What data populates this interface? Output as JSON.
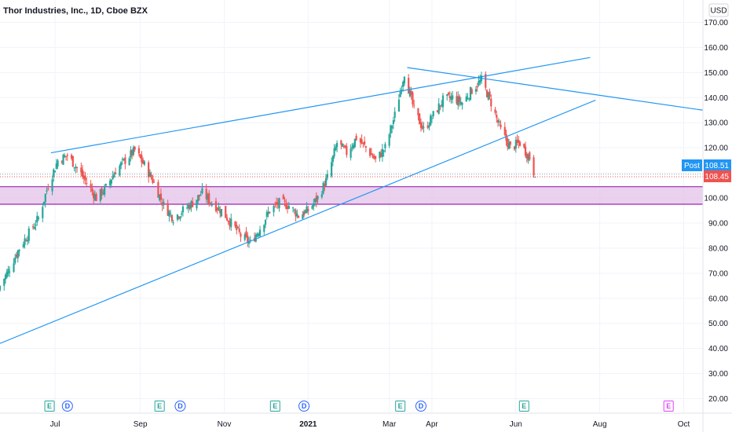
{
  "header": {
    "symbol_title": "Thor Industries, Inc., 1D, Cboe BZX",
    "currency": "USD"
  },
  "price_tags": {
    "post_label": "Post",
    "post_value": "108.51",
    "last_value": "108.45"
  },
  "colors": {
    "up": "#26a69a",
    "down": "#ef5350",
    "trendline": "#2196f3",
    "zone_fill": "#e1bee7",
    "zone_border": "#9c27b0",
    "post_tag": "#2196f3",
    "last_tag": "#ef5350",
    "earnings": "#26a69a",
    "dividend": "#2962ff",
    "future_earnings": "#e040fb"
  },
  "chart_data": {
    "type": "candlestick",
    "title": "Thor Industries, Inc., 1D, Cboe BZX",
    "ylim": [
      15,
      175
    ],
    "y_ticks": [
      "20.00",
      "30.00",
      "40.00",
      "50.00",
      "60.00",
      "70.00",
      "80.00",
      "90.00",
      "100.00",
      "110.00",
      "120.00",
      "130.00",
      "140.00",
      "150.00",
      "160.00",
      "170.00"
    ],
    "x_ticks": [
      "Jul",
      "Sep",
      "Nov",
      "2021",
      "Mar",
      "Apr",
      "Jun",
      "Aug",
      "Oct"
    ],
    "x_tick_dates": [
      "2020-07-01",
      "2020-09-01",
      "2020-11-01",
      "2021-01-01",
      "2021-03-01",
      "2021-04-01",
      "2021-06-01",
      "2021-08-01",
      "2021-10-01"
    ],
    "xlim": [
      "2020-05-22",
      "2021-10-15"
    ],
    "closes": [
      [
        "2020-05-22",
        65
      ],
      [
        "2020-05-29",
        72
      ],
      [
        "2020-06-05",
        80
      ],
      [
        "2020-06-12",
        86
      ],
      [
        "2020-06-19",
        92
      ],
      [
        "2020-06-26",
        105
      ],
      [
        "2020-07-03",
        115
      ],
      [
        "2020-07-10",
        117
      ],
      [
        "2020-07-17",
        112
      ],
      [
        "2020-07-24",
        106
      ],
      [
        "2020-07-31",
        100
      ],
      [
        "2020-08-07",
        104
      ],
      [
        "2020-08-14",
        111
      ],
      [
        "2020-08-21",
        115
      ],
      [
        "2020-08-28",
        119
      ],
      [
        "2020-09-04",
        113
      ],
      [
        "2020-09-11",
        106
      ],
      [
        "2020-09-18",
        97
      ],
      [
        "2020-09-25",
        92
      ],
      [
        "2020-10-02",
        95
      ],
      [
        "2020-10-09",
        98
      ],
      [
        "2020-10-16",
        102
      ],
      [
        "2020-10-23",
        98
      ],
      [
        "2020-10-30",
        95
      ],
      [
        "2020-11-06",
        90
      ],
      [
        "2020-11-13",
        85
      ],
      [
        "2020-11-20",
        82
      ],
      [
        "2020-11-27",
        88
      ],
      [
        "2020-12-04",
        95
      ],
      [
        "2020-12-11",
        98
      ],
      [
        "2020-12-18",
        97
      ],
      [
        "2020-12-25",
        93
      ],
      [
        "2021-01-01",
        95
      ],
      [
        "2021-01-08",
        100
      ],
      [
        "2021-01-15",
        108
      ],
      [
        "2021-01-22",
        122
      ],
      [
        "2021-01-29",
        118
      ],
      [
        "2021-02-05",
        124
      ],
      [
        "2021-02-12",
        120
      ],
      [
        "2021-02-19",
        115
      ],
      [
        "2021-02-26",
        120
      ],
      [
        "2021-03-05",
        133
      ],
      [
        "2021-03-12",
        150
      ],
      [
        "2021-03-19",
        135
      ],
      [
        "2021-03-26",
        127
      ],
      [
        "2021-04-02",
        133
      ],
      [
        "2021-04-09",
        139
      ],
      [
        "2021-04-16",
        140
      ],
      [
        "2021-04-23",
        138
      ],
      [
        "2021-04-30",
        143
      ],
      [
        "2021-05-07",
        147
      ],
      [
        "2021-05-14",
        138
      ],
      [
        "2021-05-21",
        127
      ],
      [
        "2021-05-28",
        120
      ],
      [
        "2021-06-04",
        122
      ],
      [
        "2021-06-11",
        116
      ],
      [
        "2021-06-15",
        108.45
      ]
    ],
    "support_zone": [
      97.5,
      104.5
    ],
    "trendlines": [
      {
        "from": [
          "2020-06-28",
          118
        ],
        "to": [
          "2021-07-25",
          156
        ]
      },
      {
        "from": [
          "2021-03-14",
          152
        ],
        "to": [
          "2021-10-15",
          135
        ]
      },
      {
        "from": [
          "2020-05-22",
          42
        ],
        "to": [
          "2021-07-29",
          139
        ]
      }
    ],
    "event_markers": [
      {
        "date": "2020-06-27",
        "label": "E"
      },
      {
        "date": "2020-07-10",
        "label": "D"
      },
      {
        "date": "2020-09-15",
        "label": "E"
      },
      {
        "date": "2020-09-30",
        "label": "D"
      },
      {
        "date": "2020-12-08",
        "label": "E"
      },
      {
        "date": "2020-12-29",
        "label": "D"
      },
      {
        "date": "2021-03-09",
        "label": "E"
      },
      {
        "date": "2021-03-24",
        "label": "D"
      },
      {
        "date": "2021-06-07",
        "label": "E"
      },
      {
        "date": "2021-09-20",
        "label": "E"
      }
    ]
  }
}
